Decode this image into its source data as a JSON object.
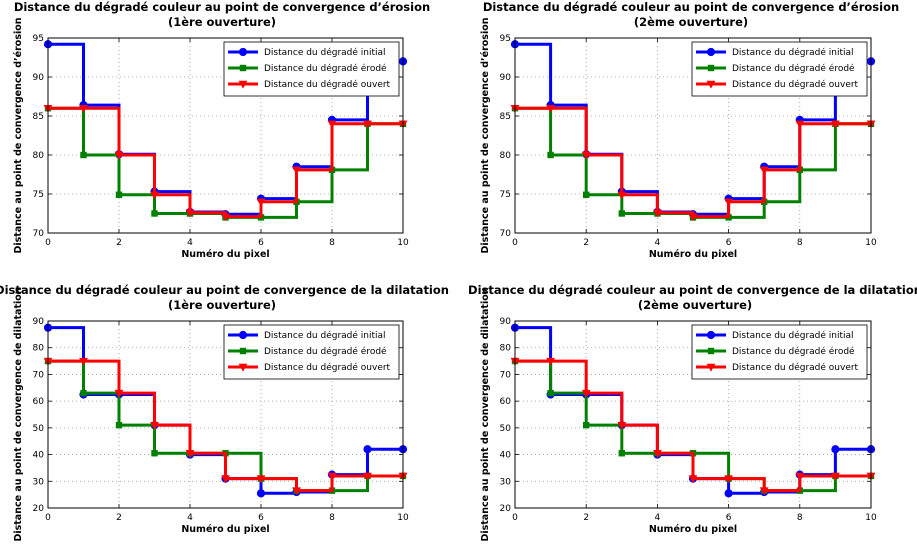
{
  "chart_data": [
    {
      "type": "line",
      "title": "Distance du dégradé couleur au point de convergence d’érosion",
      "subtitle": "(1ère ouverture)",
      "xlabel": "Numéro du pixel",
      "ylabel": "Distance au point de convergence d’érosion",
      "xlim": [
        0,
        10
      ],
      "ylim": [
        70,
        95
      ],
      "xticks": [
        "0",
        "2",
        "4",
        "6",
        "8",
        "10"
      ],
      "yticks": [
        "70",
        "75",
        "80",
        "85",
        "90",
        "95"
      ],
      "grid": true,
      "legend_position": "top-right",
      "step": true,
      "x": [
        0,
        1,
        2,
        3,
        4,
        5,
        6,
        7,
        8,
        9,
        10
      ],
      "series": [
        {
          "name": "Distance du dégradé initial",
          "color": "#0000ff",
          "marker": "circle",
          "values": [
            94.2,
            86.4,
            80.1,
            75.3,
            72.7,
            72.4,
            74.4,
            78.5,
            84.5,
            92.0,
            92.0
          ]
        },
        {
          "name": "Distance du dégradé érodé",
          "color": "#008000",
          "marker": "square",
          "values": [
            86.0,
            80.0,
            74.9,
            72.5,
            72.5,
            72.0,
            72.0,
            74.0,
            78.1,
            84.0,
            84.0
          ]
        },
        {
          "name": "Distance du dégradé ouvert",
          "color": "#ff0000",
          "marker": "triangle-down",
          "values": [
            86.0,
            86.0,
            80.0,
            74.9,
            72.6,
            72.1,
            74.0,
            78.1,
            84.0,
            84.0,
            84.0
          ]
        }
      ]
    },
    {
      "type": "line",
      "title": "Distance du dégradé couleur au point de convergence d’érosion",
      "subtitle": "(2ème ouverture)",
      "xlabel": "Numéro du pixel",
      "ylabel": "Distance au point de convergence d’érosion",
      "xlim": [
        0,
        10
      ],
      "ylim": [
        70,
        95
      ],
      "xticks": [
        "0",
        "2",
        "4",
        "6",
        "8",
        "10"
      ],
      "yticks": [
        "70",
        "75",
        "80",
        "85",
        "90",
        "95"
      ],
      "grid": true,
      "legend_position": "top-right",
      "step": true,
      "x": [
        0,
        1,
        2,
        3,
        4,
        5,
        6,
        7,
        8,
        9,
        10
      ],
      "series": [
        {
          "name": "Distance du dégradé initial",
          "color": "#0000ff",
          "marker": "circle",
          "values": [
            94.2,
            86.4,
            80.1,
            75.3,
            72.7,
            72.4,
            74.4,
            78.5,
            84.5,
            92.0,
            92.0
          ]
        },
        {
          "name": "Distance du dégradé érodé",
          "color": "#008000",
          "marker": "square",
          "values": [
            86.0,
            80.0,
            74.9,
            72.5,
            72.5,
            72.0,
            72.0,
            74.0,
            78.1,
            84.0,
            84.0
          ]
        },
        {
          "name": "Distance du dégradé ouvert",
          "color": "#ff0000",
          "marker": "triangle-down",
          "values": [
            86.0,
            86.0,
            80.0,
            74.9,
            72.6,
            72.1,
            74.0,
            78.1,
            84.0,
            84.0,
            84.0
          ]
        }
      ]
    },
    {
      "type": "line",
      "title": "Distance du dégradé couleur au point de convergence de la dilatation",
      "subtitle": "(1ère ouverture)",
      "xlabel": "Numéro du pixel",
      "ylabel": "Distance au point de convergence de dilatation",
      "xlim": [
        0,
        10
      ],
      "ylim": [
        20,
        90
      ],
      "xticks": [
        "0",
        "2",
        "4",
        "6",
        "8",
        "10"
      ],
      "yticks": [
        "20",
        "30",
        "40",
        "50",
        "60",
        "70",
        "80",
        "90"
      ],
      "grid": true,
      "legend_position": "top-right",
      "step": true,
      "x": [
        0,
        1,
        2,
        3,
        4,
        5,
        6,
        7,
        8,
        9,
        10
      ],
      "series": [
        {
          "name": "Distance du dégradé initial",
          "color": "#0000ff",
          "marker": "circle",
          "values": [
            87.5,
            62.5,
            62.5,
            51.0,
            40.0,
            31.0,
            25.5,
            26.0,
            32.5,
            42.0,
            42.0
          ]
        },
        {
          "name": "Distance du dégradé érodé",
          "color": "#008000",
          "marker": "square",
          "values": [
            75.0,
            63.0,
            51.0,
            40.5,
            40.5,
            40.5,
            31.0,
            26.5,
            26.5,
            32.0,
            32.0
          ]
        },
        {
          "name": "Distance du dégradé ouvert",
          "color": "#ff0000",
          "marker": "triangle-down",
          "values": [
            75.0,
            75.0,
            63.0,
            51.0,
            40.5,
            31.0,
            31.0,
            26.5,
            32.0,
            32.0,
            32.0
          ]
        }
      ]
    },
    {
      "type": "line",
      "title": "Distance du dégradé couleur au point de convergence de la dilatation",
      "subtitle": "(2ème ouverture)",
      "xlabel": "Numéro du pixel",
      "ylabel": "Distance au point de convergence de dilatation",
      "xlim": [
        0,
        10
      ],
      "ylim": [
        20,
        90
      ],
      "xticks": [
        "0",
        "2",
        "4",
        "6",
        "8",
        "10"
      ],
      "yticks": [
        "20",
        "30",
        "40",
        "50",
        "60",
        "70",
        "80",
        "90"
      ],
      "grid": true,
      "legend_position": "top-right",
      "step": true,
      "x": [
        0,
        1,
        2,
        3,
        4,
        5,
        6,
        7,
        8,
        9,
        10
      ],
      "series": [
        {
          "name": "Distance du dégradé initial",
          "color": "#0000ff",
          "marker": "circle",
          "values": [
            87.5,
            62.5,
            62.5,
            51.0,
            40.0,
            31.0,
            25.5,
            26.0,
            32.5,
            42.0,
            42.0
          ]
        },
        {
          "name": "Distance du dégradé érodé",
          "color": "#008000",
          "marker": "square",
          "values": [
            75.0,
            63.0,
            51.0,
            40.5,
            40.5,
            40.5,
            31.0,
            26.5,
            26.5,
            32.0,
            32.0
          ]
        },
        {
          "name": "Distance du dégradé ouvert",
          "color": "#ff0000",
          "marker": "triangle-down",
          "values": [
            75.0,
            75.0,
            63.0,
            51.0,
            40.5,
            31.0,
            31.0,
            26.5,
            32.0,
            32.0,
            32.0
          ]
        }
      ]
    }
  ]
}
